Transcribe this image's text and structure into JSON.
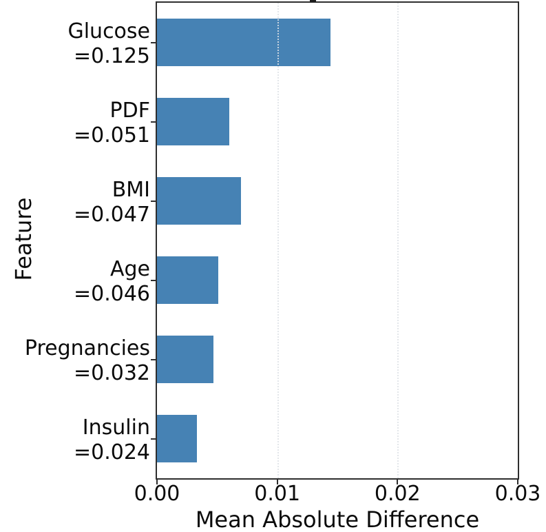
{
  "chart_data": {
    "type": "bar",
    "orientation": "horizontal",
    "title": "",
    "xlabel": "Mean Absolute Difference",
    "ylabel": "Feature",
    "xlim": [
      0,
      0.03
    ],
    "xticks": [
      {
        "label": "0.00",
        "value": 0.0
      },
      {
        "label": "0.01",
        "value": 0.01
      },
      {
        "label": "0.02",
        "value": 0.02
      },
      {
        "label": "0.03",
        "value": 0.03
      }
    ],
    "grid": {
      "vertical_dotted_at": [
        0.01,
        0.02
      ],
      "horizontal": false,
      "drawn_above_bars": true
    },
    "legend": "none",
    "bar_color": "#4682b4",
    "spine_color": "#2e2e2e",
    "grid_color": "#dee2e6",
    "categories": [
      "Glucose",
      "PDF",
      "BMI",
      "Age",
      "Pregnancies",
      "Insulin"
    ],
    "category_value_labels": [
      "=0.125",
      "=0.051",
      "=0.047",
      "=0.046",
      "=0.032",
      "=0.024"
    ],
    "values": [
      0.0144,
      0.006,
      0.007,
      0.0051,
      0.0047,
      0.0033
    ]
  }
}
